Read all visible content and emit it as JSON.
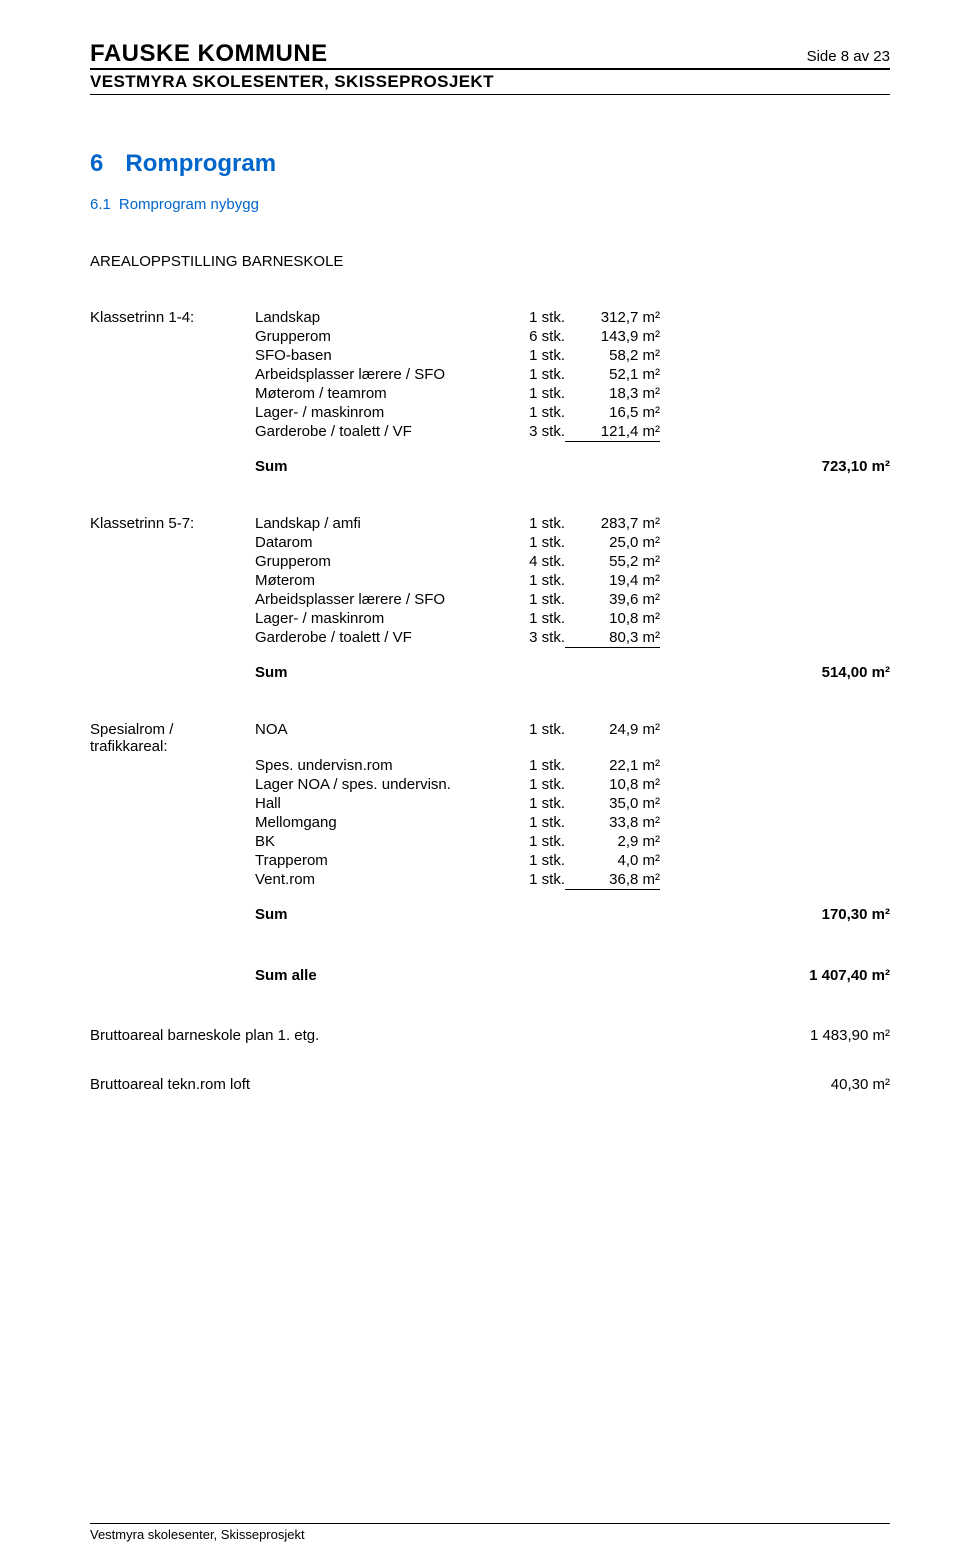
{
  "header": {
    "org": "FAUSKE KOMMUNE",
    "page_label": "Side 8 av 23",
    "project": "VESTMYRA SKOLESENTER, SKISSEPROSJEKT"
  },
  "chapter": {
    "num": "6",
    "title": "Romprogram"
  },
  "subchapter": {
    "num": "6.1",
    "title": "Romprogram nybygg"
  },
  "section_title": "AREALOPPSTILLING BARNESKOLE",
  "groups": [
    {
      "label": "Klassetrinn 1-4:",
      "rows": [
        {
          "desc": "Landskap",
          "qty": "1 stk.",
          "val": "312,7 m²"
        },
        {
          "desc": "Grupperom",
          "qty": "6 stk.",
          "val": "143,9 m²"
        },
        {
          "desc": "SFO-basen",
          "qty": "1 stk.",
          "val": "58,2 m²"
        },
        {
          "desc": "Arbeidsplasser lærere / SFO",
          "qty": "1 stk.",
          "val": "52,1 m²"
        },
        {
          "desc": "Møterom / teamrom",
          "qty": "1 stk.",
          "val": "18,3 m²"
        },
        {
          "desc": "Lager- / maskinrom",
          "qty": "1 stk.",
          "val": "16,5 m²"
        },
        {
          "desc": "Garderobe / toalett / VF",
          "qty": "3 stk.",
          "val": "121,4 m²"
        }
      ],
      "sum_label": "Sum",
      "sum_val": "723,10 m²"
    },
    {
      "label": "Klassetrinn 5-7:",
      "rows": [
        {
          "desc": "Landskap / amfi",
          "qty": "1 stk.",
          "val": "283,7 m²"
        },
        {
          "desc": "Datarom",
          "qty": "1 stk.",
          "val": "25,0 m²"
        },
        {
          "desc": "Grupperom",
          "qty": "4 stk.",
          "val": "55,2 m²"
        },
        {
          "desc": "Møterom",
          "qty": "1 stk.",
          "val": "19,4 m²"
        },
        {
          "desc": "Arbeidsplasser lærere / SFO",
          "qty": "1 stk.",
          "val": "39,6 m²"
        },
        {
          "desc": "Lager- / maskinrom",
          "qty": "1 stk.",
          "val": "10,8 m²"
        },
        {
          "desc": "Garderobe / toalett / VF",
          "qty": "3 stk.",
          "val": "80,3 m²"
        }
      ],
      "sum_label": "Sum",
      "sum_val": "514,00 m²"
    },
    {
      "label": "Spesialrom / trafikkareal:",
      "rows": [
        {
          "desc": "NOA",
          "qty": "1 stk.",
          "val": "24,9 m²"
        },
        {
          "desc": "Spes. undervisn.rom",
          "qty": "1 stk.",
          "val": "22,1 m²"
        },
        {
          "desc": "Lager NOA / spes. undervisn.",
          "qty": "1 stk.",
          "val": "10,8 m²"
        },
        {
          "desc": "Hall",
          "qty": "1 stk.",
          "val": "35,0 m²"
        },
        {
          "desc": "Mellomgang",
          "qty": "1 stk.",
          "val": "33,8 m²"
        },
        {
          "desc": "BK",
          "qty": "1 stk.",
          "val": "2,9 m²"
        },
        {
          "desc": "Trapperom",
          "qty": "1 stk.",
          "val": "4,0 m²"
        },
        {
          "desc": "Vent.rom",
          "qty": "1 stk.",
          "val": "36,8 m²"
        }
      ],
      "sum_label": "Sum",
      "sum_val": "170,30 m²"
    }
  ],
  "sum_alle": {
    "label": "Sum alle",
    "val": "1 407,40 m²"
  },
  "bottom_rows": [
    {
      "label": "Bruttoareal barneskole plan 1. etg.",
      "val": "1 483,90 m²"
    },
    {
      "label": "Bruttoareal tekn.rom loft",
      "val": "40,30 m²"
    }
  ],
  "footer": "Vestmyra skolesenter, Skisseprosjekt"
}
